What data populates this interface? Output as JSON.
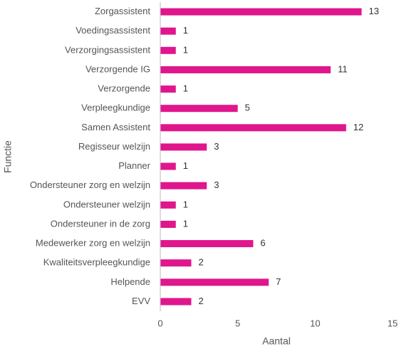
{
  "chart_data": {
    "type": "bar",
    "orientation": "horizontal",
    "x_label": "Aantal",
    "y_label": "Functie",
    "categories": [
      "Zorgassistent",
      "Voedingsassistent",
      "Verzorgingsassistent",
      "Verzorgende IG",
      "Verzorgende",
      "Verpleegkundige",
      "Samen Assistent",
      "Regisseur welzijn",
      "Planner",
      "Ondersteuner zorg en welzijn",
      "Ondersteuner welzijn",
      "Ondersteuner in de zorg",
      "Medewerker zorg en welzijn",
      "Kwaliteitsverpleegkundige",
      "Helpende",
      "EVV"
    ],
    "values": [
      13,
      1,
      1,
      11,
      1,
      5,
      12,
      3,
      1,
      3,
      1,
      1,
      6,
      2,
      7,
      2
    ],
    "color": "#e0168c",
    "xlim": [
      0,
      15
    ],
    "xticks": [
      0,
      5,
      10,
      15
    ],
    "grid": false,
    "data_labels": true
  }
}
